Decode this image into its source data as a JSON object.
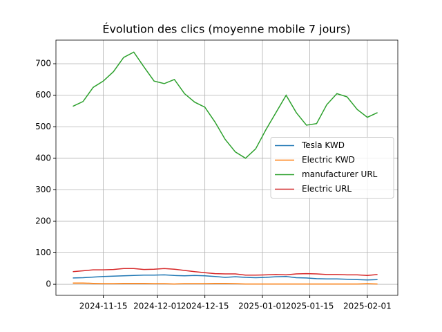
{
  "chart_data": {
    "type": "line",
    "title": "Évolution des clics (moyenne mobile 7 jours)",
    "x": [
      "2024-11-06",
      "2024-11-09",
      "2024-11-12",
      "2024-11-15",
      "2024-11-18",
      "2024-11-21",
      "2024-11-24",
      "2024-11-27",
      "2024-11-30",
      "2024-12-03",
      "2024-12-06",
      "2024-12-09",
      "2024-12-12",
      "2024-12-15",
      "2024-12-18",
      "2024-12-21",
      "2024-12-24",
      "2024-12-27",
      "2024-12-30",
      "2025-01-02",
      "2025-01-05",
      "2025-01-08",
      "2025-01-11",
      "2025-01-14",
      "2025-01-17",
      "2025-01-20",
      "2025-01-23",
      "2025-01-26",
      "2025-01-29",
      "2025-02-01",
      "2025-02-04"
    ],
    "series": [
      {
        "name": "Tesla KWD",
        "color": "#1f77b4",
        "values": [
          20,
          21,
          23,
          25,
          26,
          27,
          28,
          29,
          29,
          30,
          28,
          27,
          28,
          27,
          25,
          22,
          24,
          22,
          21,
          22,
          24,
          25,
          21,
          20,
          18,
          17,
          17,
          16,
          15,
          14,
          15
        ]
      },
      {
        "name": "Electric KWD",
        "color": "#ff7f0e",
        "values": [
          4,
          4,
          3,
          2,
          2,
          3,
          3,
          3,
          2,
          2,
          1,
          2,
          2,
          2,
          3,
          3,
          2,
          1,
          1,
          1,
          1,
          1,
          1,
          1,
          1,
          1,
          1,
          1,
          1,
          2,
          1
        ]
      },
      {
        "name": "manufacturer URL",
        "color": "#2ca02c",
        "values": [
          565,
          580,
          625,
          645,
          675,
          720,
          737,
          690,
          645,
          637,
          650,
          605,
          578,
          562,
          515,
          460,
          420,
          400,
          430,
          490,
          545,
          600,
          545,
          505,
          510,
          570,
          605,
          595,
          555,
          530,
          545
        ]
      },
      {
        "name": "Electric URL",
        "color": "#d62728",
        "values": [
          40,
          43,
          46,
          46,
          47,
          50,
          50,
          47,
          48,
          50,
          48,
          44,
          40,
          37,
          34,
          33,
          33,
          29,
          29,
          30,
          31,
          30,
          33,
          34,
          33,
          31,
          31,
          30,
          30,
          28,
          31
        ]
      }
    ],
    "xlim": [
      "2024-11-01",
      "2025-02-10"
    ],
    "xticks": [
      "2024-11-15",
      "2024-12-01",
      "2024-12-15",
      "2025-01-01",
      "2025-01-15",
      "2025-02-01"
    ],
    "ylim": [
      -35,
      775
    ],
    "yticks": [
      0,
      100,
      200,
      300,
      400,
      500,
      600,
      700
    ],
    "grid": true,
    "legend": "center right"
  }
}
